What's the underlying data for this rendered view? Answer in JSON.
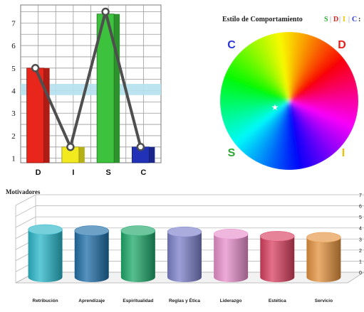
{
  "chart_data": [
    {
      "type": "bar",
      "categories": [
        "D",
        "I",
        "S",
        "C"
      ],
      "values": [
        5.0,
        1.5,
        7.4,
        1.5
      ],
      "line_values": [
        5.0,
        1.5,
        7.5,
        1.5
      ],
      "yticks": [
        "1",
        "2",
        "3",
        "4",
        "5",
        "6",
        "7"
      ],
      "ylim": [
        0.8,
        7.8
      ],
      "band": [
        3.8,
        4.3
      ],
      "grid": true,
      "colors": {
        "D": "#e8261c",
        "I": "#f2ea1e",
        "S": "#3cc23c",
        "C": "#2232b8",
        "band": "#b5e1ee",
        "line": "#4f4f4f"
      }
    },
    {
      "type": "pie",
      "title": "Estilo de Comportamiento",
      "legend": [
        "S",
        "D",
        "I",
        "C"
      ],
      "legend_colors": [
        "#2aa832",
        "#e3211c",
        "#f0c000",
        "#2a36d6"
      ],
      "labels": [
        "C",
        "D",
        "S",
        "I"
      ],
      "marker": "★"
    },
    {
      "type": "bar",
      "title": "Motivadores",
      "categories": [
        "Retribución",
        "Aprendizaje",
        "Espiritualidad",
        "Reglas y Ética",
        "Liderazgo",
        "Estética",
        "Servicio"
      ],
      "values": [
        4.3,
        4.2,
        4.2,
        4.1,
        3.9,
        3.7,
        3.6
      ],
      "yticks": [
        "0",
        "1",
        "2",
        "3",
        "4",
        "5",
        "6",
        "7"
      ],
      "ylim": [
        0,
        7
      ],
      "grid": true,
      "colors": [
        "#2ab7c9",
        "#1f6ea8",
        "#1fa86a",
        "#7b80c9",
        "#e78fcc",
        "#d94060",
        "#e3923e"
      ]
    }
  ]
}
